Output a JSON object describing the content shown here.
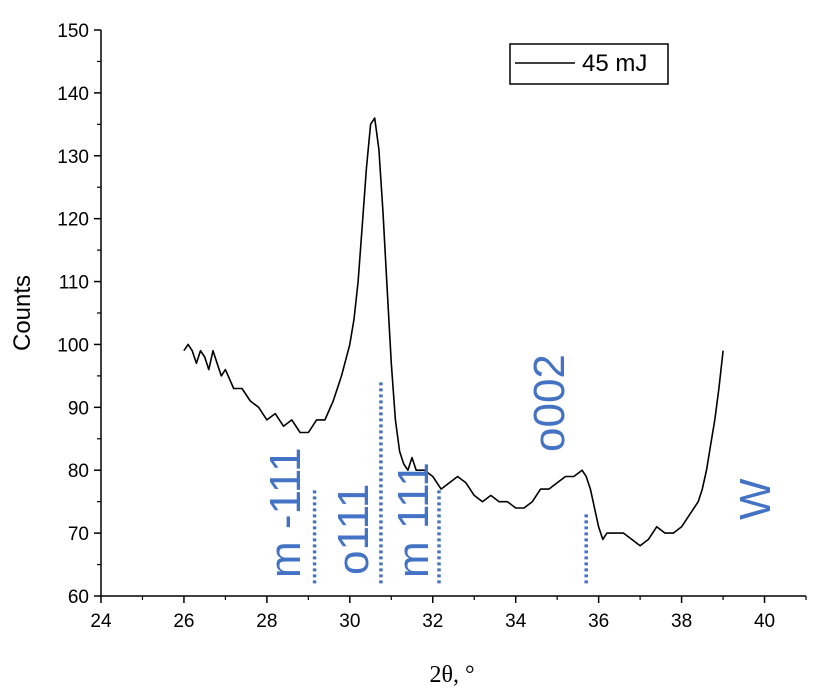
{
  "chart_data": {
    "type": "line",
    "xlabel": "2θ, °",
    "ylabel": "Counts",
    "xlim": [
      24,
      41
    ],
    "ylim": [
      60,
      150
    ],
    "xticks": [
      24,
      26,
      28,
      30,
      32,
      34,
      36,
      38,
      40
    ],
    "yticks": [
      60,
      70,
      80,
      90,
      100,
      110,
      120,
      130,
      140,
      150
    ],
    "legend_position": "top-right",
    "series": [
      {
        "name": "45 mJ",
        "color": "#000000",
        "x": [
          26.0,
          26.1,
          26.2,
          26.3,
          26.4,
          26.5,
          26.6,
          26.7,
          26.8,
          26.9,
          27.0,
          27.2,
          27.4,
          27.6,
          27.8,
          28.0,
          28.2,
          28.4,
          28.6,
          28.8,
          29.0,
          29.2,
          29.4,
          29.6,
          29.8,
          30.0,
          30.1,
          30.2,
          30.3,
          30.4,
          30.5,
          30.6,
          30.7,
          30.8,
          30.9,
          31.0,
          31.1,
          31.2,
          31.3,
          31.4,
          31.5,
          31.6,
          31.8,
          32.0,
          32.2,
          32.4,
          32.6,
          32.8,
          33.0,
          33.2,
          33.4,
          33.6,
          33.8,
          34.0,
          34.2,
          34.4,
          34.6,
          34.8,
          35.0,
          35.2,
          35.4,
          35.6,
          35.7,
          35.8,
          36.0,
          36.1,
          36.2,
          36.4,
          36.6,
          36.8,
          37.0,
          37.2,
          37.4,
          37.6,
          37.8,
          38.0,
          38.2,
          38.4,
          38.5,
          38.6,
          38.7,
          38.8,
          38.9,
          39.0
        ],
        "y": [
          99,
          100,
          99,
          97,
          99,
          98,
          96,
          99,
          97,
          95,
          96,
          93,
          93,
          91,
          90,
          88,
          89,
          87,
          88,
          86,
          86,
          88,
          88,
          91,
          95,
          100,
          104,
          110,
          119,
          128,
          135,
          136,
          131,
          121,
          109,
          97,
          88,
          83,
          81,
          80,
          82,
          80,
          80,
          79,
          77,
          78,
          79,
          78,
          76,
          75,
          76,
          75,
          75,
          74,
          74,
          75,
          77,
          77,
          78,
          79,
          79,
          80,
          79,
          77,
          71,
          69,
          70,
          70,
          70,
          69,
          68,
          69,
          71,
          70,
          70,
          71,
          73,
          75,
          77,
          80,
          84,
          88,
          93,
          99
        ]
      }
    ],
    "annotations": [
      {
        "text": "m -111",
        "x": 29.15,
        "ymin": 62,
        "ymax": 77,
        "color": "#4472C4"
      },
      {
        "text": "o111",
        "x": 30.75,
        "ymin": 62,
        "ymax": 94,
        "color": "#4472C4"
      },
      {
        "text": "m 111",
        "x": 32.15,
        "ymin": 62,
        "ymax": 77,
        "color": "#4472C4"
      },
      {
        "text": "o002",
        "x": 35.7,
        "ymin": 62,
        "ymax": 73,
        "color": "#4472C4"
      },
      {
        "text": "W",
        "x": 39.8,
        "color": "#4472C4"
      }
    ]
  }
}
